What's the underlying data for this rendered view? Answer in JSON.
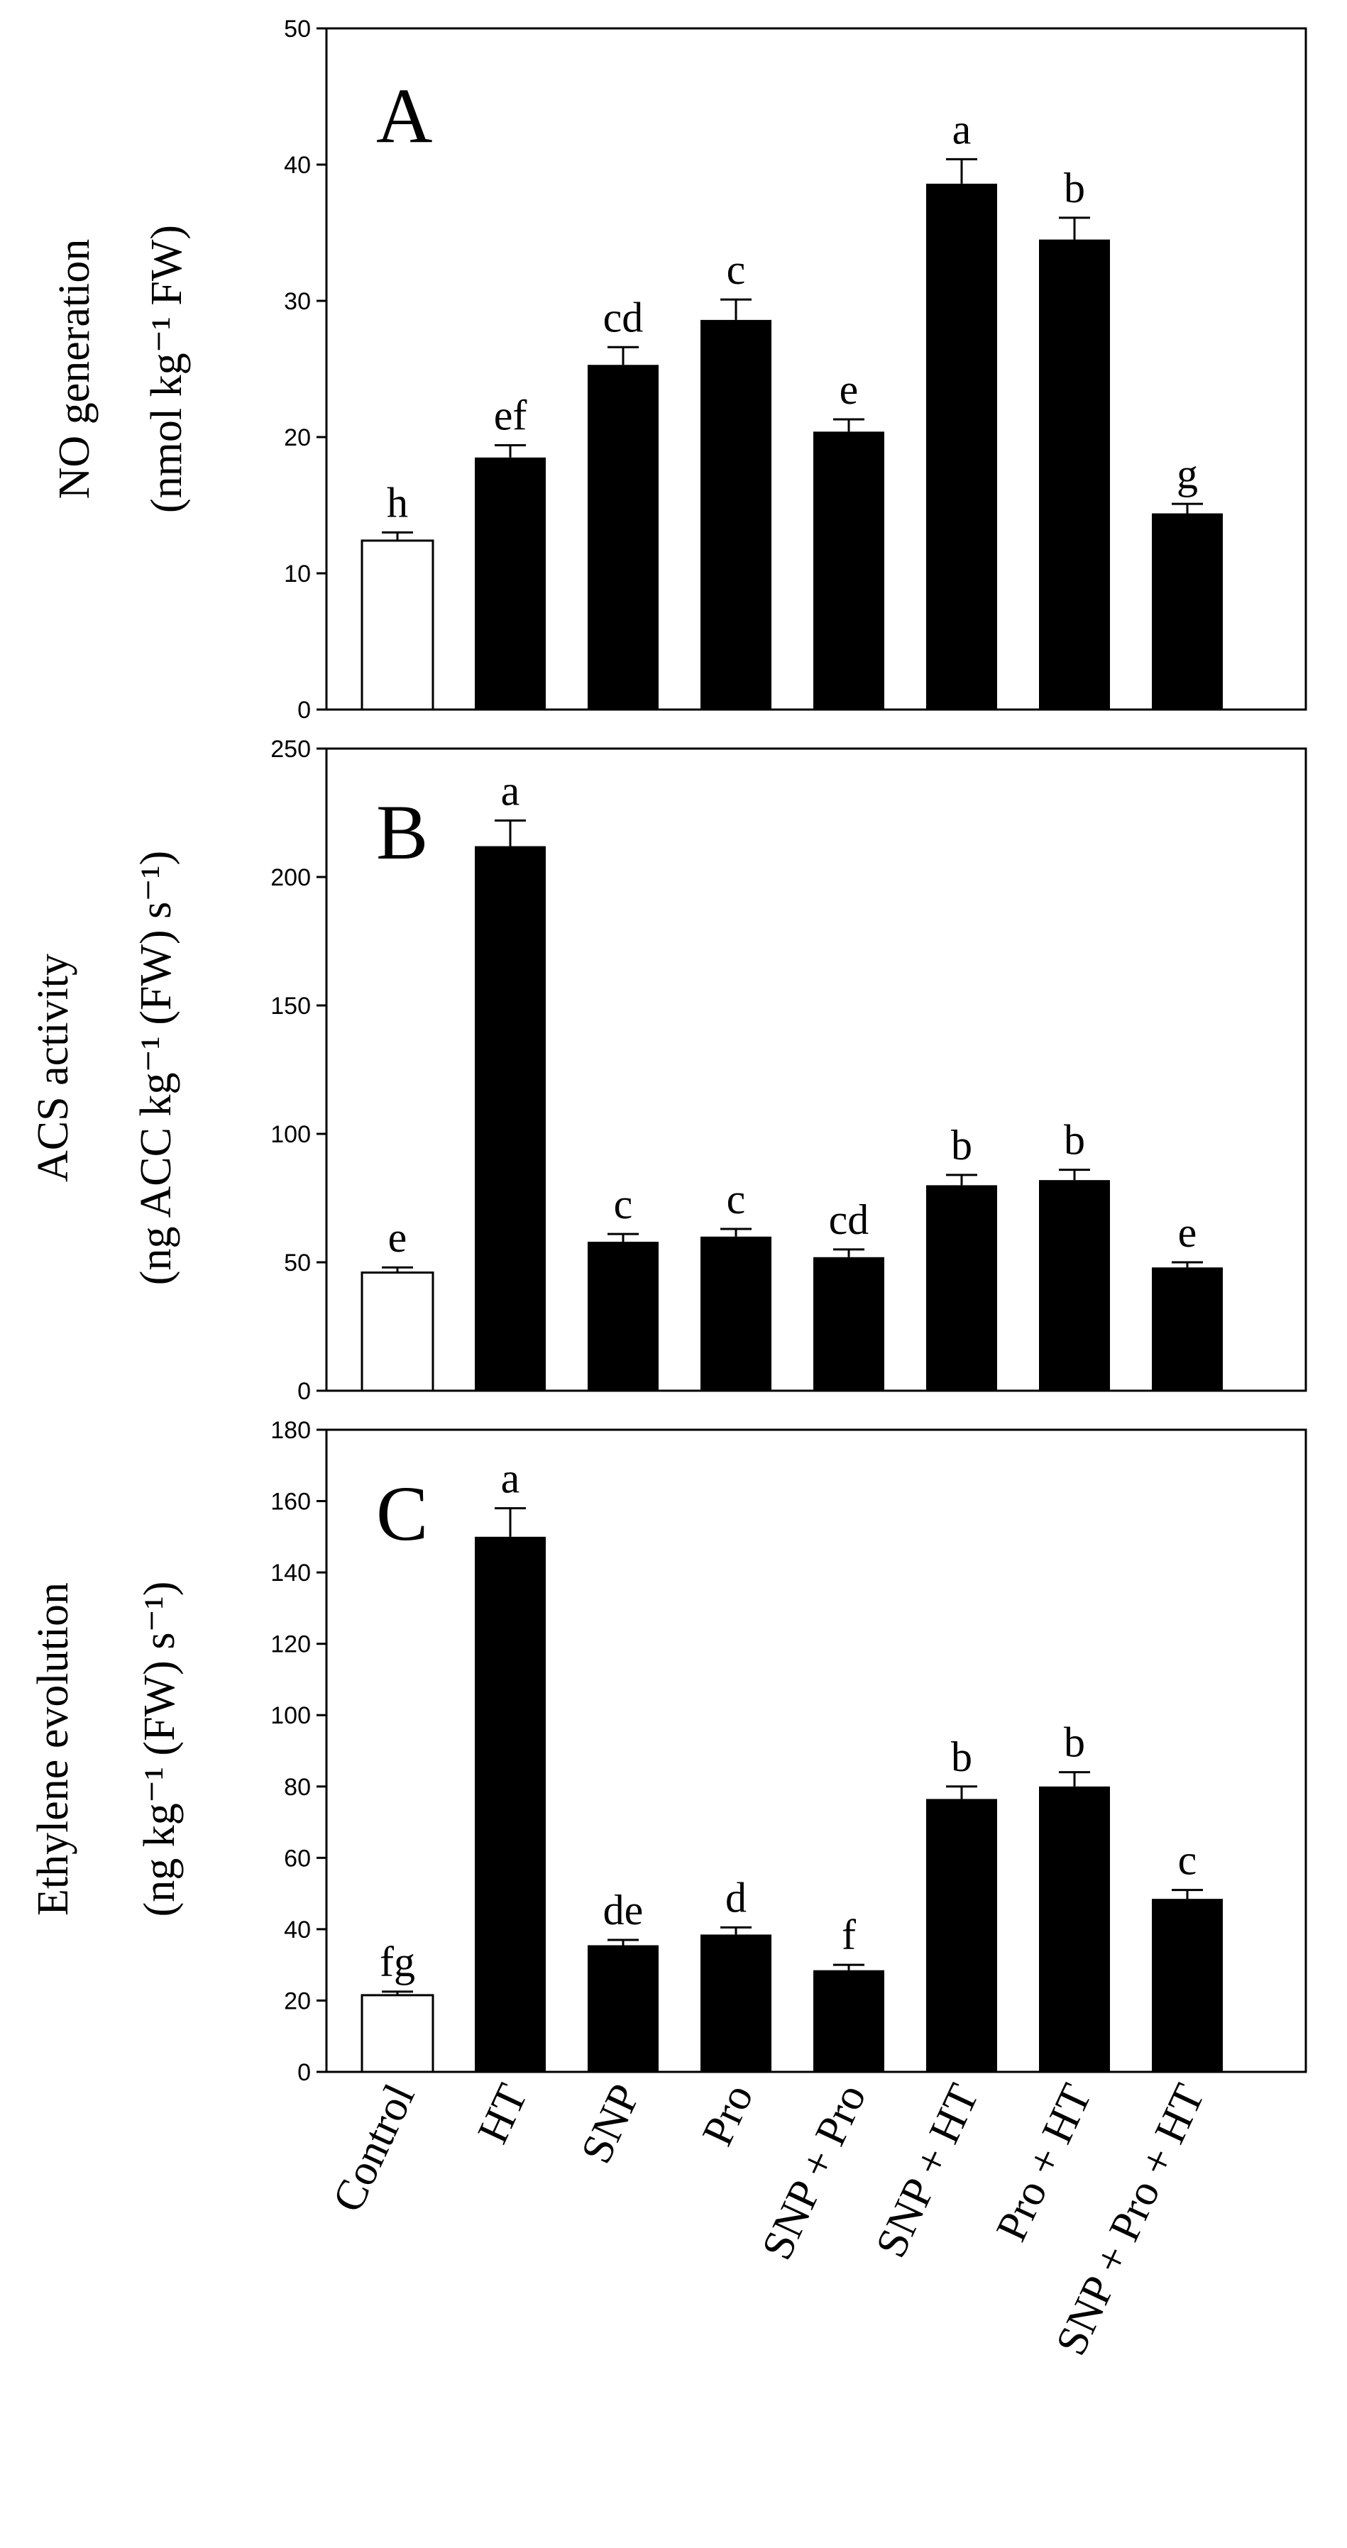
{
  "chart_data": [
    {
      "type": "bar",
      "panel": "A",
      "categories": [
        "Control",
        "HT",
        "SNP",
        "Pro",
        "SNP + Pro",
        "SNP + HT",
        "Pro + HT",
        "SNP + Pro + HT"
      ],
      "values": [
        12.4,
        18.5,
        25.3,
        28.6,
        20.4,
        38.6,
        34.5,
        14.4
      ],
      "errors": [
        0.6,
        0.9,
        1.3,
        1.5,
        0.9,
        1.8,
        1.6,
        0.7
      ],
      "letters": [
        "h",
        "ef",
        "cd",
        "c",
        "e",
        "a",
        "b",
        "g"
      ],
      "ylabel": "NO generation",
      "yunit": "(nmol kg⁻¹ FW)",
      "ylim": [
        0,
        50
      ],
      "yticks": [
        0,
        10,
        20,
        30,
        40,
        50
      ],
      "colors": [
        "#ffffff",
        "#000000",
        "#000000",
        "#000000",
        "#000000",
        "#000000",
        "#000000",
        "#000000"
      ]
    },
    {
      "type": "bar",
      "panel": "B",
      "categories": [
        "Control",
        "HT",
        "SNP",
        "Pro",
        "SNP + Pro",
        "SNP + HT",
        "Pro + HT",
        "SNP + Pro + HT"
      ],
      "values": [
        46,
        212,
        58,
        60,
        52,
        80,
        82,
        48
      ],
      "errors": [
        2,
        10,
        3,
        3,
        3,
        4,
        4,
        2
      ],
      "letters": [
        "e",
        "a",
        "c",
        "c",
        "cd",
        "b",
        "b",
        "e"
      ],
      "ylabel": "ACS activity",
      "yunit": "(ng ACC kg⁻¹ (FW) s⁻¹)",
      "ylim": [
        0,
        250
      ],
      "yticks": [
        0,
        50,
        100,
        150,
        200,
        250
      ],
      "colors": [
        "#ffffff",
        "#000000",
        "#000000",
        "#000000",
        "#000000",
        "#000000",
        "#000000",
        "#000000"
      ]
    },
    {
      "type": "bar",
      "panel": "C",
      "categories": [
        "Control",
        "HT",
        "SNP",
        "Pro",
        "SNP + Pro",
        "SNP + HT",
        "Pro + HT",
        "SNP + Pro + HT"
      ],
      "values": [
        21.5,
        150,
        35.5,
        38.5,
        28.5,
        76.5,
        80,
        48.5
      ],
      "errors": [
        1,
        8,
        1.5,
        2,
        1.5,
        3.5,
        4,
        2.5
      ],
      "letters": [
        "fg",
        "a",
        "de",
        "d",
        "f",
        "b",
        "b",
        "c"
      ],
      "ylabel": "Ethylene evolution",
      "yunit": "(ng kg⁻¹ (FW) s⁻¹)",
      "ylim": [
        0,
        180
      ],
      "yticks": [
        0,
        20,
        40,
        60,
        80,
        100,
        120,
        140,
        160,
        180
      ],
      "colors": [
        "#ffffff",
        "#000000",
        "#000000",
        "#000000",
        "#000000",
        "#000000",
        "#000000",
        "#000000"
      ]
    }
  ]
}
